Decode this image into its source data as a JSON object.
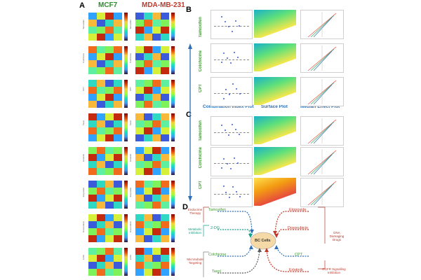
{
  "panels": {
    "a": "A",
    "b": "B",
    "c": "C",
    "d": "D"
  },
  "heatmap_columns": {
    "left": "MCF7",
    "right": "MDA-MB-231"
  },
  "heatmap_rows": [
    {
      "drug": "Tamoxifen"
    },
    {
      "drug": "Colchicine"
    },
    {
      "drug": "CPT"
    },
    {
      "drug": "Taxol"
    },
    {
      "drug": "Erlotinib"
    },
    {
      "drug": "Etoposide"
    },
    {
      "drug": "Doxorubicin"
    },
    {
      "drug": "2-DG"
    }
  ],
  "section_b": {
    "drugs": [
      "Tamoxifen",
      "Colchicine",
      "CPT"
    ],
    "plot_titles": [
      "Combination Index Plot",
      "Surface Plot",
      "Median Effect Plot"
    ]
  },
  "section_c": {
    "drugs": [
      "Tamoxifen",
      "Colchicine",
      "CPT"
    ]
  },
  "diagram": {
    "center": "BC Cells",
    "left_drugs": [
      "Tamoxifen",
      "2-DG",
      "Colchicine",
      "Taxol"
    ],
    "right_drugs": [
      "Etoposide",
      "Doxorubicin",
      "CPT",
      "Erlotinib"
    ],
    "left_categories": [
      "Endocrine Therapy",
      "Metabolic Inhibition",
      "Microtubule Targeting"
    ],
    "right_categories": [
      "DNA Damaging Drugs",
      "EGFR Signalling Inhibition"
    ],
    "colors": {
      "endocrine": "#c0392b",
      "metabolic": "#16a085",
      "microtubule": "#7d7d7d",
      "dna": "#b03a2e",
      "egfr": "#c0392b",
      "drug_green": "#3a9a2a",
      "node_fill": "#f5d9a6"
    }
  }
}
